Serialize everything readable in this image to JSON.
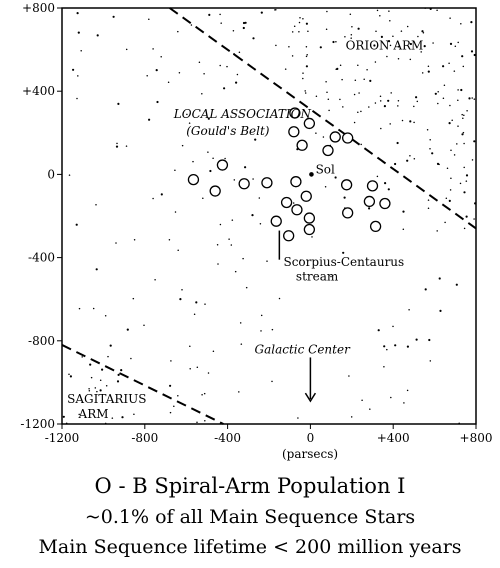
{
  "chart_data": {
    "type": "scatter",
    "xlim": [
      -1200,
      800
    ],
    "ylim": [
      -1200,
      800
    ],
    "xticks": [
      "-1200",
      "-800",
      "-400",
      "0",
      "+400",
      "+800"
    ],
    "yticks": [
      "+800",
      "+400",
      "0",
      "-400",
      "-800",
      "-1200"
    ],
    "x_tick_values": [
      -1200,
      -800,
      -400,
      0,
      400,
      800
    ],
    "y_tick_values": [
      800,
      400,
      0,
      -400,
      -800,
      -1200
    ],
    "xlabel": "(parsecs)",
    "grid": false,
    "regions": [
      {
        "label": "ORION ARM",
        "x": 170,
        "y": 600
      },
      {
        "label": "LOCAL ASSOCIATION",
        "x": -660,
        "y": 270,
        "italic": true
      },
      {
        "label": "(Gould's Belt)",
        "x": -600,
        "y": 190,
        "italic": true
      },
      {
        "label": "Sol",
        "x": 25,
        "y": 5
      },
      {
        "label": "Scorpius-Centaurus",
        "x": -130,
        "y": -440
      },
      {
        "label": "stream",
        "x": -70,
        "y": -510
      },
      {
        "label": "Galactic Center",
        "x": -270,
        "y": -860,
        "italic": true
      },
      {
        "label": "SAGITARIUS",
        "x": -1175,
        "y": -1100
      },
      {
        "label": "ARM",
        "x": -1120,
        "y": -1170
      }
    ],
    "boundaries": [
      {
        "name": "orion-boundary",
        "points": [
          [
            -680,
            800
          ],
          [
            800,
            -260
          ]
        ]
      },
      {
        "name": "sagittarius-boundary",
        "points": [
          [
            -1200,
            -820
          ],
          [
            -420,
            -1200
          ]
        ]
      }
    ],
    "sol": {
      "x": 5,
      "y": 0
    },
    "ob_associations": [
      {
        "x": -75,
        "y": 295
      },
      {
        "x": -5,
        "y": 245
      },
      {
        "x": -80,
        "y": 205
      },
      {
        "x": 120,
        "y": 180
      },
      {
        "x": 180,
        "y": 175
      },
      {
        "x": -40,
        "y": 140
      },
      {
        "x": 85,
        "y": 115
      },
      {
        "x": -425,
        "y": 45
      },
      {
        "x": -565,
        "y": -25
      },
      {
        "x": -320,
        "y": -45
      },
      {
        "x": -210,
        "y": -40
      },
      {
        "x": -70,
        "y": -35
      },
      {
        "x": 175,
        "y": -50
      },
      {
        "x": 300,
        "y": -55
      },
      {
        "x": -460,
        "y": -80
      },
      {
        "x": -20,
        "y": -105
      },
      {
        "x": -115,
        "y": -135
      },
      {
        "x": 285,
        "y": -130
      },
      {
        "x": 360,
        "y": -140
      },
      {
        "x": -65,
        "y": -170
      },
      {
        "x": 180,
        "y": -185
      },
      {
        "x": -5,
        "y": -210
      },
      {
        "x": -165,
        "y": -225
      },
      {
        "x": -5,
        "y": -265
      },
      {
        "x": 315,
        "y": -250
      },
      {
        "x": -105,
        "y": -295
      }
    ],
    "arrow_to_galactic_center": {
      "x": 0,
      "from_y": -880,
      "to_y": -1090
    },
    "annotation_line": {
      "x": -150,
      "from_y": -270,
      "to_y": -410
    }
  },
  "captions": {
    "line1": "O - B Spiral-Arm Population I",
    "line2": "~0.1% of all Main Sequence Stars",
    "line3": "Main Sequence lifetime < 200 million years"
  }
}
